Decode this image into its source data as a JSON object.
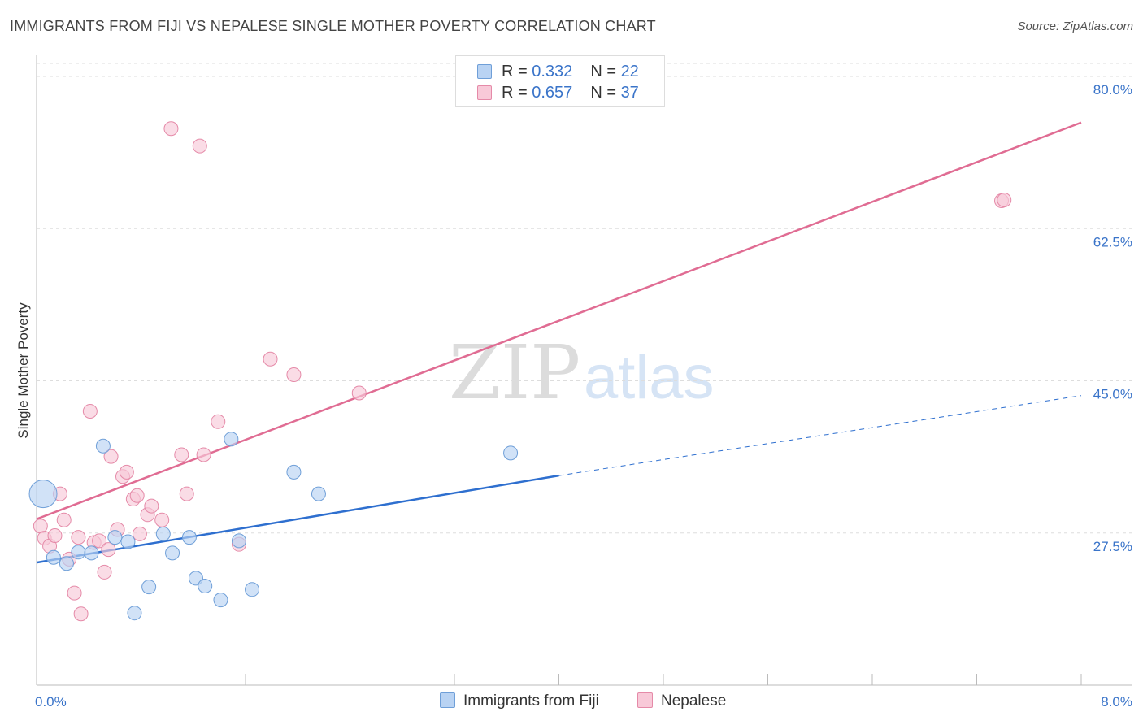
{
  "title": "IMMIGRANTS FROM FIJI VS NEPALESE SINGLE MOTHER POVERTY CORRELATION CHART",
  "source": "Source: ZipAtlas.com",
  "watermark": {
    "zip": "ZIP",
    "atlas": "atlas"
  },
  "legend": {
    "fiji": {
      "r_label": "R = ",
      "r_value": "0.332",
      "n_label": "N = ",
      "n_value": "22"
    },
    "nepal": {
      "r_label": "R = ",
      "r_value": "0.657",
      "n_label": "N = ",
      "n_value": "37"
    }
  },
  "bottom_legend": {
    "fiji": "Immigrants from Fiji",
    "nepal": "Nepalese"
  },
  "colors": {
    "fiji_fill": "#b9d3f3",
    "fiji_stroke": "#6f9fd8",
    "fiji_line": "#2e6fcf",
    "nepal_fill": "#f8c9d8",
    "nepal_stroke": "#e58aa8",
    "nepal_line": "#e06c93",
    "tick_label": "#3a74c9",
    "grid": "#dddddd"
  },
  "chart_data": {
    "type": "scatter",
    "title": "IMMIGRANTS FROM FIJI VS NEPALESE SINGLE MOTHER POVERTY CORRELATION CHART",
    "xlabel": "",
    "ylabel": "Single Mother Poverty",
    "xlim": [
      0,
      8.0
    ],
    "ylim": [
      10,
      81.5
    ],
    "x_tick_labels": [
      "0.0%",
      "8.0%"
    ],
    "y_ticks": [
      27.5,
      45.0,
      62.5,
      80.0
    ],
    "y_tick_labels": [
      "27.5%",
      "45.0%",
      "62.5%",
      "80.0%"
    ],
    "grid": true,
    "legend_position": "top-center",
    "series": [
      {
        "name": "Immigrants from Fiji",
        "R": 0.332,
        "N": 22,
        "points": [
          {
            "x": 0.05,
            "y": 32.0,
            "big": true
          },
          {
            "x": 0.13,
            "y": 24.7
          },
          {
            "x": 0.23,
            "y": 24.0
          },
          {
            "x": 0.32,
            "y": 25.3
          },
          {
            "x": 0.42,
            "y": 25.2
          },
          {
            "x": 0.51,
            "y": 37.5
          },
          {
            "x": 0.6,
            "y": 27.0
          },
          {
            "x": 0.7,
            "y": 26.5
          },
          {
            "x": 0.75,
            "y": 18.3
          },
          {
            "x": 0.86,
            "y": 21.3
          },
          {
            "x": 0.97,
            "y": 27.4
          },
          {
            "x": 1.04,
            "y": 25.2
          },
          {
            "x": 1.17,
            "y": 27.0
          },
          {
            "x": 1.22,
            "y": 22.3
          },
          {
            "x": 1.29,
            "y": 21.4
          },
          {
            "x": 1.41,
            "y": 19.8
          },
          {
            "x": 1.49,
            "y": 38.3
          },
          {
            "x": 1.55,
            "y": 26.6
          },
          {
            "x": 1.65,
            "y": 21.0
          },
          {
            "x": 1.97,
            "y": 34.5
          },
          {
            "x": 2.16,
            "y": 32.0
          },
          {
            "x": 3.63,
            "y": 36.7
          }
        ],
        "trend": {
          "x_solid": [
            0,
            4.0
          ],
          "y_solid": [
            24.1,
            34.1
          ],
          "x_dashed": [
            4.0,
            8.0
          ],
          "y_dashed": [
            34.1,
            43.3
          ]
        }
      },
      {
        "name": "Nepalese",
        "R": 0.657,
        "N": 37,
        "points": [
          {
            "x": 0.03,
            "y": 28.3
          },
          {
            "x": 0.06,
            "y": 26.9
          },
          {
            "x": 0.1,
            "y": 26.0
          },
          {
            "x": 0.14,
            "y": 27.2
          },
          {
            "x": 0.18,
            "y": 32.0
          },
          {
            "x": 0.21,
            "y": 29.0
          },
          {
            "x": 0.25,
            "y": 24.5
          },
          {
            "x": 0.29,
            "y": 20.6
          },
          {
            "x": 0.32,
            "y": 27.0
          },
          {
            "x": 0.34,
            "y": 18.2
          },
          {
            "x": 0.41,
            "y": 41.5
          },
          {
            "x": 0.44,
            "y": 26.4
          },
          {
            "x": 0.48,
            "y": 26.6
          },
          {
            "x": 0.52,
            "y": 23.0
          },
          {
            "x": 0.55,
            "y": 25.6
          },
          {
            "x": 0.57,
            "y": 36.3
          },
          {
            "x": 0.62,
            "y": 27.9
          },
          {
            "x": 0.66,
            "y": 34.0
          },
          {
            "x": 0.69,
            "y": 34.5
          },
          {
            "x": 0.74,
            "y": 31.4
          },
          {
            "x": 0.77,
            "y": 31.8
          },
          {
            "x": 0.79,
            "y": 27.4
          },
          {
            "x": 0.85,
            "y": 29.6
          },
          {
            "x": 0.88,
            "y": 30.6
          },
          {
            "x": 0.96,
            "y": 29.0
          },
          {
            "x": 1.03,
            "y": 74.0
          },
          {
            "x": 1.11,
            "y": 36.5
          },
          {
            "x": 1.15,
            "y": 32.0
          },
          {
            "x": 1.25,
            "y": 72.0
          },
          {
            "x": 1.28,
            "y": 36.5
          },
          {
            "x": 1.39,
            "y": 40.3
          },
          {
            "x": 1.55,
            "y": 26.2
          },
          {
            "x": 1.79,
            "y": 47.5
          },
          {
            "x": 1.97,
            "y": 45.7
          },
          {
            "x": 2.47,
            "y": 43.6
          },
          {
            "x": 7.39,
            "y": 65.7
          },
          {
            "x": 7.41,
            "y": 65.8
          }
        ],
        "trend": {
          "x": [
            0,
            8.0
          ],
          "y": [
            29.1,
            74.7
          ]
        }
      }
    ]
  }
}
